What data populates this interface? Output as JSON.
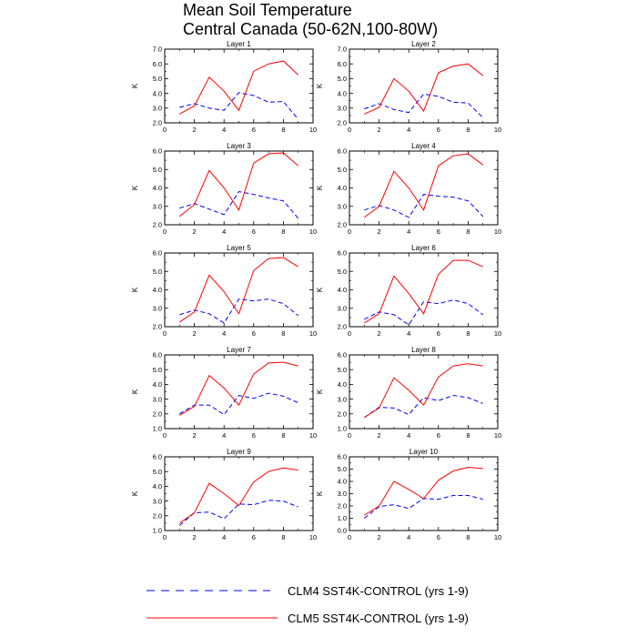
{
  "title": {
    "line1": "Mean Soil Temperature",
    "line2": "Central Canada (50-62N,100-80W)"
  },
  "legend": [
    {
      "label": "CLM4 SST4K-CONTROL (yrs 1-9)",
      "color": "#0000ff",
      "style": "dashed"
    },
    {
      "label": "CLM5 SST4K-CONTROL (yrs 1-9)",
      "color": "#ff0000",
      "style": "solid"
    }
  ],
  "chart_data": [
    {
      "type": "line",
      "title": "Layer 1",
      "ylabel": "K",
      "xlim": [
        0,
        10
      ],
      "ylim": [
        2.0,
        7.0
      ],
      "xticks": [
        0,
        2,
        4,
        6,
        8,
        10
      ],
      "yticks": [
        "2.0",
        "3.0",
        "4.0",
        "5.0",
        "6.0",
        "7.0"
      ],
      "x": [
        1,
        2,
        3,
        4,
        5,
        6,
        7,
        8,
        9
      ],
      "series": [
        {
          "name": "CLM4 SST4K-CONTROL (yrs 1-9)",
          "values": [
            3.05,
            3.3,
            3.0,
            2.85,
            4.05,
            3.85,
            3.4,
            3.45,
            2.25
          ]
        },
        {
          "name": "CLM5 SST4K-CONTROL (yrs 1-9)",
          "values": [
            2.6,
            3.15,
            5.1,
            4.15,
            2.85,
            5.5,
            6.0,
            6.2,
            5.25
          ]
        }
      ]
    },
    {
      "type": "line",
      "title": "Layer 2",
      "ylabel": "K",
      "xlim": [
        0,
        10
      ],
      "ylim": [
        2.0,
        7.0
      ],
      "xticks": [
        0,
        2,
        4,
        6,
        8,
        10
      ],
      "yticks": [
        "2.0",
        "3.0",
        "4.0",
        "5.0",
        "6.0",
        "7.0"
      ],
      "x": [
        1,
        2,
        3,
        4,
        5,
        6,
        7,
        8,
        9
      ],
      "series": [
        {
          "name": "CLM4 SST4K-CONTROL (yrs 1-9)",
          "values": [
            2.95,
            3.3,
            2.9,
            2.7,
            3.95,
            3.8,
            3.4,
            3.35,
            2.35
          ]
        },
        {
          "name": "CLM5 SST4K-CONTROL (yrs 1-9)",
          "values": [
            2.6,
            3.05,
            5.0,
            4.15,
            2.8,
            5.4,
            5.85,
            6.0,
            5.2
          ]
        }
      ]
    },
    {
      "type": "line",
      "title": "Layer 3",
      "ylabel": "K",
      "xlim": [
        0,
        10
      ],
      "ylim": [
        2.0,
        6.0
      ],
      "xticks": [
        0,
        2,
        4,
        6,
        8,
        10
      ],
      "yticks": [
        "2.0",
        "3.0",
        "4.0",
        "5.0",
        "6.0"
      ],
      "x": [
        1,
        2,
        3,
        4,
        5,
        6,
        7,
        8,
        9
      ],
      "series": [
        {
          "name": "CLM4 SST4K-CONTROL (yrs 1-9)",
          "values": [
            2.9,
            3.15,
            2.85,
            2.55,
            3.8,
            3.65,
            3.45,
            3.3,
            2.35
          ]
        },
        {
          "name": "CLM5 SST4K-CONTROL (yrs 1-9)",
          "values": [
            2.45,
            3.1,
            4.95,
            4.0,
            2.8,
            5.35,
            5.85,
            5.9,
            5.2
          ]
        }
      ]
    },
    {
      "type": "line",
      "title": "Layer 4",
      "ylabel": "K",
      "xlim": [
        0,
        10
      ],
      "ylim": [
        2.0,
        6.0
      ],
      "xticks": [
        0,
        2,
        4,
        6,
        8,
        10
      ],
      "yticks": [
        "2.0",
        "3.0",
        "4.0",
        "5.0",
        "6.0"
      ],
      "x": [
        1,
        2,
        3,
        4,
        5,
        6,
        7,
        8,
        9
      ],
      "series": [
        {
          "name": "CLM4 SST4K-CONTROL (yrs 1-9)",
          "values": [
            2.8,
            3.05,
            2.8,
            2.4,
            3.65,
            3.55,
            3.5,
            3.3,
            2.45
          ]
        },
        {
          "name": "CLM5 SST4K-CONTROL (yrs 1-9)",
          "values": [
            2.4,
            3.0,
            4.9,
            4.0,
            2.8,
            5.2,
            5.75,
            5.85,
            5.25
          ]
        }
      ]
    },
    {
      "type": "line",
      "title": "Layer 5",
      "ylabel": "K",
      "xlim": [
        0,
        10
      ],
      "ylim": [
        2.0,
        6.0
      ],
      "xticks": [
        0,
        2,
        4,
        6,
        8,
        10
      ],
      "yticks": [
        "2.0",
        "3.0",
        "4.0",
        "5.0",
        "6.0"
      ],
      "x": [
        1,
        2,
        3,
        4,
        5,
        6,
        7,
        8,
        9
      ],
      "series": [
        {
          "name": "CLM4 SST4K-CONTROL (yrs 1-9)",
          "values": [
            2.65,
            2.9,
            2.7,
            2.2,
            3.5,
            3.4,
            3.5,
            3.25,
            2.6
          ]
        },
        {
          "name": "CLM5 SST4K-CONTROL (yrs 1-9)",
          "values": [
            2.25,
            2.8,
            4.8,
            3.9,
            2.7,
            5.05,
            5.7,
            5.75,
            5.25
          ]
        }
      ]
    },
    {
      "type": "line",
      "title": "Layer 6",
      "ylabel": "K",
      "xlim": [
        0,
        10
      ],
      "ylim": [
        2.0,
        6.0
      ],
      "xticks": [
        0,
        2,
        4,
        6,
        8,
        10
      ],
      "yticks": [
        "2.0",
        "3.0",
        "4.0",
        "5.0",
        "6.0"
      ],
      "x": [
        1,
        2,
        3,
        4,
        5,
        6,
        7,
        8,
        9
      ],
      "series": [
        {
          "name": "CLM4 SST4K-CONTROL (yrs 1-9)",
          "values": [
            2.4,
            2.8,
            2.65,
            2.1,
            3.35,
            3.25,
            3.45,
            3.25,
            2.65
          ]
        },
        {
          "name": "CLM5 SST4K-CONTROL (yrs 1-9)",
          "values": [
            2.2,
            2.7,
            4.75,
            3.8,
            2.7,
            4.85,
            5.6,
            5.6,
            5.25
          ]
        }
      ]
    },
    {
      "type": "line",
      "title": "Layer 7",
      "ylabel": "K",
      "xlim": [
        0,
        10
      ],
      "ylim": [
        1.0,
        6.0
      ],
      "xticks": [
        0,
        2,
        4,
        6,
        8,
        10
      ],
      "yticks": [
        "1.0",
        "2.0",
        "3.0",
        "4.0",
        "5.0",
        "6.0"
      ],
      "x": [
        1,
        2,
        3,
        4,
        5,
        6,
        7,
        8,
        9
      ],
      "series": [
        {
          "name": "CLM4 SST4K-CONTROL (yrs 1-9)",
          "values": [
            2.0,
            2.6,
            2.6,
            1.95,
            3.25,
            3.05,
            3.4,
            3.2,
            2.75
          ]
        },
        {
          "name": "CLM5 SST4K-CONTROL (yrs 1-9)",
          "values": [
            1.9,
            2.5,
            4.6,
            3.75,
            2.6,
            4.7,
            5.45,
            5.5,
            5.25
          ]
        }
      ]
    },
    {
      "type": "line",
      "title": "Layer 8",
      "ylabel": "K",
      "xlim": [
        0,
        10
      ],
      "ylim": [
        1.0,
        6.0
      ],
      "xticks": [
        0,
        2,
        4,
        6,
        8,
        10
      ],
      "yticks": [
        "1.0",
        "2.0",
        "3.0",
        "4.0",
        "5.0",
        "6.0"
      ],
      "x": [
        1,
        2,
        3,
        4,
        5,
        6,
        7,
        8,
        9
      ],
      "series": [
        {
          "name": "CLM4 SST4K-CONTROL (yrs 1-9)",
          "values": [
            1.75,
            2.45,
            2.4,
            1.95,
            3.1,
            2.9,
            3.25,
            3.1,
            2.7
          ]
        },
        {
          "name": "CLM5 SST4K-CONTROL (yrs 1-9)",
          "values": [
            1.75,
            2.4,
            4.45,
            3.6,
            2.6,
            4.5,
            5.25,
            5.4,
            5.25
          ]
        }
      ]
    },
    {
      "type": "line",
      "title": "Layer 9",
      "ylabel": "K",
      "xlim": [
        0,
        10
      ],
      "ylim": [
        1.0,
        6.0
      ],
      "xticks": [
        0,
        2,
        4,
        6,
        8,
        10
      ],
      "yticks": [
        "1.0",
        "2.0",
        "3.0",
        "4.0",
        "5.0",
        "6.0"
      ],
      "x": [
        1,
        2,
        3,
        4,
        5,
        6,
        7,
        8,
        9
      ],
      "series": [
        {
          "name": "CLM4 SST4K-CONTROL (yrs 1-9)",
          "values": [
            1.35,
            2.2,
            2.25,
            1.8,
            2.8,
            2.75,
            3.05,
            3.0,
            2.6
          ]
        },
        {
          "name": "CLM5 SST4K-CONTROL (yrs 1-9)",
          "values": [
            1.5,
            2.2,
            4.2,
            3.5,
            2.7,
            4.3,
            5.0,
            5.25,
            5.1
          ]
        }
      ]
    },
    {
      "type": "line",
      "title": "Layer 10",
      "ylabel": "K",
      "xlim": [
        0,
        10
      ],
      "ylim": [
        0.0,
        6.0
      ],
      "xticks": [
        0,
        2,
        4,
        6,
        8,
        10
      ],
      "yticks": [
        "0.0",
        "1.0",
        "2.0",
        "3.0",
        "4.0",
        "5.0",
        "6.0"
      ],
      "x": [
        1,
        2,
        3,
        4,
        5,
        6,
        7,
        8,
        9
      ],
      "series": [
        {
          "name": "CLM4 SST4K-CONTROL (yrs 1-9)",
          "values": [
            1.0,
            1.95,
            2.1,
            1.8,
            2.6,
            2.55,
            2.85,
            2.85,
            2.55
          ]
        },
        {
          "name": "CLM5 SST4K-CONTROL (yrs 1-9)",
          "values": [
            1.25,
            2.0,
            4.0,
            3.35,
            2.6,
            4.1,
            4.85,
            5.15,
            5.05
          ]
        }
      ]
    }
  ]
}
